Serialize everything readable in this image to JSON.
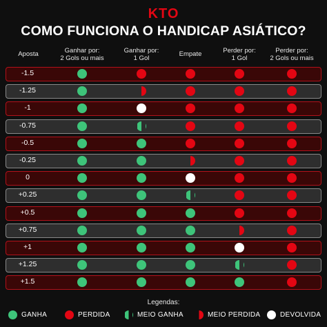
{
  "brand": "KTO",
  "title": "COMO FUNCIONA O HANDICAP ASIÁTICO?",
  "columns": [
    {
      "line1": "Aposta",
      "line2": ""
    },
    {
      "line1": "Ganhar por:",
      "line2": "2 Gols ou mais"
    },
    {
      "line1": "Ganhar por:",
      "line2": "1 Gol"
    },
    {
      "line1": "Empate",
      "line2": ""
    },
    {
      "line1": "Perder por:",
      "line2": "1 Gol"
    },
    {
      "line1": "Perder por:",
      "line2": "2 Gols ou mais"
    }
  ],
  "rows": [
    {
      "aposta": "-1.5",
      "style": "red",
      "results": [
        "ganha",
        "perdida",
        "perdida",
        "perdida",
        "perdida"
      ]
    },
    {
      "aposta": "-1.25",
      "style": "gray",
      "results": [
        "ganha",
        "meio-perdida",
        "perdida",
        "perdida",
        "perdida"
      ]
    },
    {
      "aposta": "-1",
      "style": "red",
      "results": [
        "ganha",
        "devolvida",
        "perdida",
        "perdida",
        "perdida"
      ]
    },
    {
      "aposta": "-0.75",
      "style": "gray",
      "results": [
        "ganha",
        "meio-ganha",
        "perdida",
        "perdida",
        "perdida"
      ]
    },
    {
      "aposta": "-0.5",
      "style": "red",
      "results": [
        "ganha",
        "ganha",
        "perdida",
        "perdida",
        "perdida"
      ]
    },
    {
      "aposta": "-0.25",
      "style": "gray",
      "results": [
        "ganha",
        "ganha",
        "meio-perdida",
        "perdida",
        "perdida"
      ]
    },
    {
      "aposta": "0",
      "style": "red",
      "results": [
        "ganha",
        "ganha",
        "devolvida",
        "perdida",
        "perdida"
      ]
    },
    {
      "aposta": "+0.25",
      "style": "gray",
      "results": [
        "ganha",
        "ganha",
        "meio-ganha",
        "perdida",
        "perdida"
      ]
    },
    {
      "aposta": "+0.5",
      "style": "red",
      "results": [
        "ganha",
        "ganha",
        "ganha",
        "perdida",
        "perdida"
      ]
    },
    {
      "aposta": "+0.75",
      "style": "gray",
      "results": [
        "ganha",
        "ganha",
        "ganha",
        "meio-perdida",
        "perdida"
      ]
    },
    {
      "aposta": "+1",
      "style": "red",
      "results": [
        "ganha",
        "ganha",
        "ganha",
        "devolvida",
        "perdida"
      ]
    },
    {
      "aposta": "+1.25",
      "style": "gray",
      "results": [
        "ganha",
        "ganha",
        "ganha",
        "meio-ganha",
        "perdida"
      ]
    },
    {
      "aposta": "+1.5",
      "style": "red",
      "results": [
        "ganha",
        "ganha",
        "ganha",
        "ganha",
        "perdida"
      ]
    }
  ],
  "legend": {
    "title": "Legendas:",
    "items": [
      {
        "type": "ganha",
        "label": "GANHA"
      },
      {
        "type": "perdida",
        "label": "PERDIDA"
      },
      {
        "type": "meio-ganha",
        "label": "MEIO GANHA"
      },
      {
        "type": "meio-perdida",
        "label": "MEIO PERDIDA"
      },
      {
        "type": "devolvida",
        "label": "DEVOLVIDA"
      }
    ]
  },
  "colors": {
    "ganha": "#3ec47a",
    "perdida": "#e30613",
    "devolvida": "#ffffff",
    "brand": "#e30613",
    "background": "#0f0f0f"
  }
}
